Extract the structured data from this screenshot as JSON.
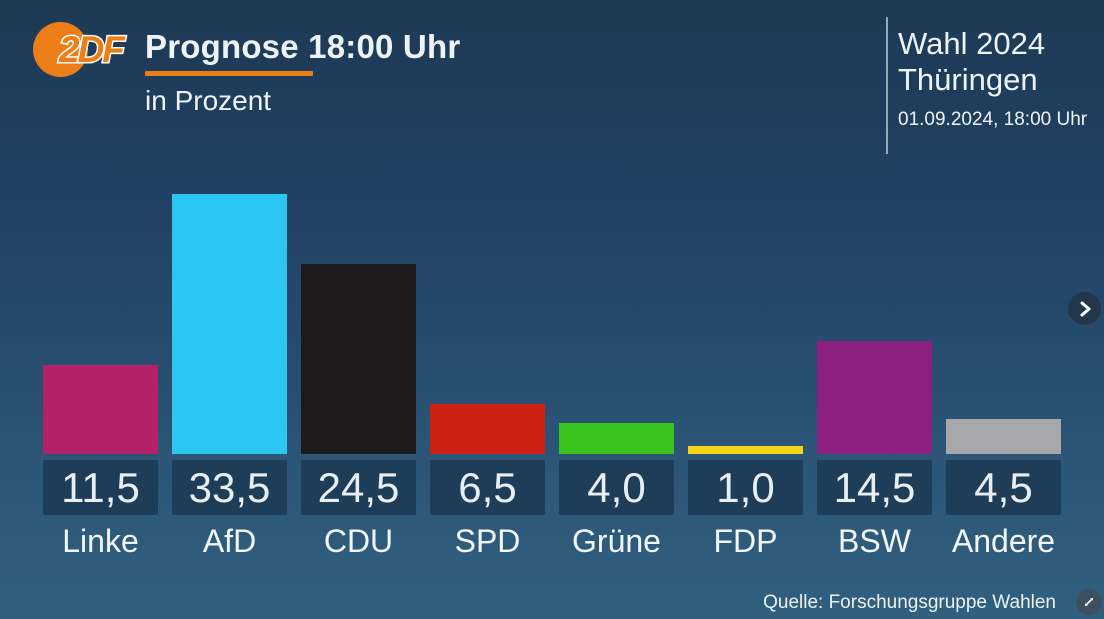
{
  "logo": {
    "text": "2DF",
    "color": "#ec7e17"
  },
  "accent_color": "#ec7e17",
  "header": {
    "title": "Prognose 18:00 Uhr",
    "subtitle": "in Prozent",
    "election": {
      "line1": "Wahl 2024",
      "line2": "Thüringen",
      "datetime": "01.09.2024, 18:00 Uhr"
    }
  },
  "footer": {
    "source": "Quelle: Forschungsgruppe Wahlen"
  },
  "icons": {
    "next": "chevron-right-icon",
    "expand": "expand-icon"
  },
  "chart_data": {
    "type": "bar",
    "title": "Prognose 18:00 Uhr",
    "subtitle": "in Prozent",
    "unit": "Prozent",
    "categories": [
      "Linke",
      "AfD",
      "CDU",
      "SPD",
      "Grüne",
      "FDP",
      "BSW",
      "Andere"
    ],
    "values": [
      11.5,
      33.5,
      24.5,
      6.5,
      4.0,
      1.0,
      14.5,
      4.5
    ],
    "value_labels": [
      "11,5",
      "33,5",
      "24,5",
      "6,5",
      "4,0",
      "1,0",
      "14,5",
      "4,5"
    ],
    "colors": [
      "#b4206a",
      "#2bc7f2",
      "#1d1a1b",
      "#cc2113",
      "#3ac51e",
      "#f5d617",
      "#8c2081",
      "#a8a8aa"
    ],
    "ylim": [
      0,
      35
    ],
    "grid": false,
    "legend": "none",
    "value_box_color": "#1e3d59",
    "background_top": "#1d3a54",
    "background_bottom": "#31607f"
  }
}
